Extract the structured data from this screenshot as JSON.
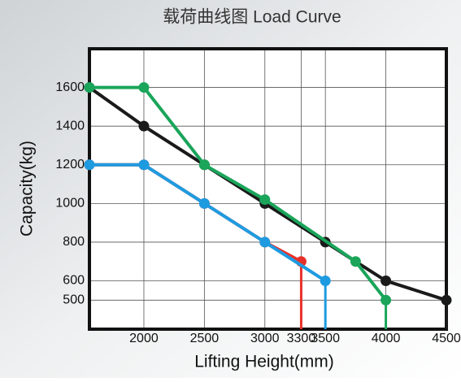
{
  "chart_data": {
    "type": "line",
    "title": "载荷曲线图 Load Curve",
    "x_label": "Lifting Height(mm)",
    "y_label": "Capacity(kg)",
    "xlim": [
      1550,
      4500
    ],
    "ylim": [
      350,
      1800
    ],
    "xticks": [
      2000,
      2500,
      3000,
      3300,
      3500,
      4000,
      4500
    ],
    "yticks": [
      500,
      600,
      800,
      1000,
      1200,
      1400,
      1600
    ],
    "grid": true,
    "series": [
      {
        "color": "#1a1a1a",
        "x": [
          1550,
          2000,
          2500,
          3000,
          3500,
          4000,
          4500
        ],
        "values": [
          1600,
          1400,
          1200,
          1000,
          800,
          600,
          500
        ]
      },
      {
        "color": "#1aa55a",
        "x": [
          1550,
          2000,
          2500,
          3000,
          3750,
          4000
        ],
        "values": [
          1600,
          1600,
          1200,
          1020,
          700,
          500
        ]
      },
      {
        "color": "#e8302a",
        "x": [
          1550,
          2000,
          2500,
          3000,
          3300
        ],
        "values": [
          1200,
          1200,
          1000,
          800,
          700
        ]
      },
      {
        "color": "#1e9be0",
        "x": [
          1550,
          2000,
          2500,
          3000,
          3500
        ],
        "values": [
          1200,
          1200,
          1000,
          800,
          600
        ]
      }
    ]
  }
}
